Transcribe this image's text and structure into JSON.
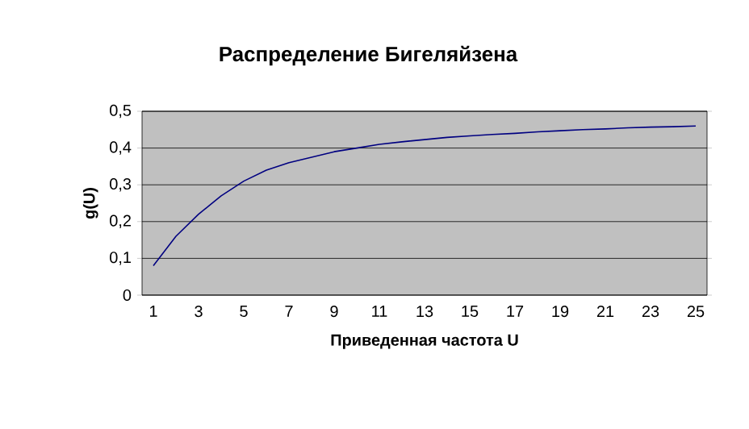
{
  "chart_data": {
    "type": "line",
    "title": "Распределение Бигеляйзена",
    "xlabel": "Приведенная частота U",
    "ylabel": "g(U)",
    "categories": [
      "1",
      null,
      "3",
      null,
      "5",
      null,
      "7",
      null,
      "9",
      null,
      "11",
      null,
      "13",
      null,
      "15",
      null,
      "17",
      null,
      "19",
      null,
      "21",
      null,
      "23",
      null,
      "25"
    ],
    "series": [
      {
        "color": "#000080",
        "values": [
          0.08,
          0.16,
          0.22,
          0.27,
          0.31,
          0.34,
          0.36,
          0.375,
          0.39,
          0.4,
          0.41,
          0.417,
          0.423,
          0.429,
          0.433,
          0.437,
          0.44,
          0.444,
          0.447,
          0.45,
          0.452,
          0.455,
          0.457,
          0.458,
          0.46
        ]
      }
    ],
    "ylim": [
      0,
      0.5
    ],
    "yticks": [
      {
        "value": 0,
        "label": "0"
      },
      {
        "value": 0.1,
        "label": "0,1"
      },
      {
        "value": 0.2,
        "label": "0,2"
      },
      {
        "value": 0.3,
        "label": "0,3"
      },
      {
        "value": 0.4,
        "label": "0,4"
      },
      {
        "value": 0.5,
        "label": "0,5"
      }
    ],
    "grid": "y",
    "marker": "none",
    "line_style": "solid"
  }
}
